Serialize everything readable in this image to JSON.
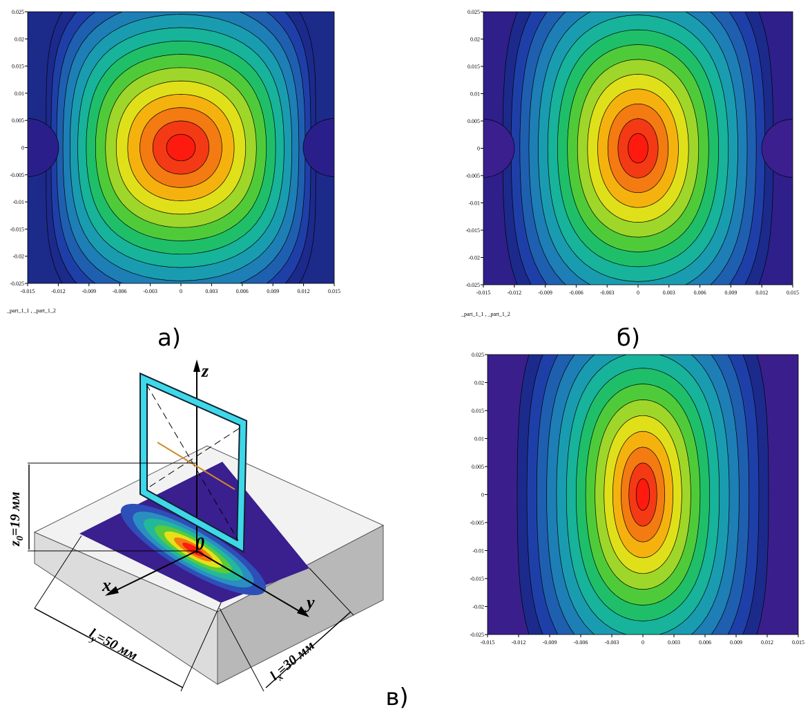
{
  "plots": [
    {
      "xticks": [
        -0.015,
        -0.012,
        -0.009,
        -0.006,
        -0.003,
        0,
        0.003,
        0.006,
        0.009,
        0.012,
        0.015
      ],
      "yticks": [
        0.025,
        0.02,
        0.015,
        0.01,
        0.005,
        0,
        -0.005,
        -0.01,
        -0.015,
        -0.02,
        -0.025
      ],
      "legend": "_part_1_1 , _part_1_2",
      "caption": "а)"
    },
    {
      "xticks": [
        -0.015,
        -0.012,
        -0.009,
        -0.006,
        -0.003,
        0,
        0.003,
        0.006,
        0.009,
        0.012,
        0.015
      ],
      "yticks": [
        0.025,
        0.02,
        0.015,
        0.01,
        0.005,
        0,
        -0.005,
        -0.01,
        -0.015,
        -0.02,
        -0.025
      ],
      "legend": "_part_1_1 , _part_1_2",
      "caption": "б)"
    },
    {
      "xticks": [
        -0.015,
        -0.012,
        -0.009,
        -0.006,
        -0.003,
        0,
        0.003,
        0.006,
        0.009,
        0.012,
        0.015
      ],
      "yticks": [
        0.025,
        0.02,
        0.015,
        0.01,
        0.005,
        0,
        -0.005,
        -0.01,
        -0.015,
        -0.02,
        -0.025
      ]
    }
  ],
  "diagram": {
    "axes": {
      "z": "z",
      "x": "x",
      "y": "y",
      "origin": "0"
    },
    "z0": {
      "symbol": "z",
      "subscript": "0",
      "text": "=19 мм"
    },
    "ly": {
      "symbol": "l",
      "subscript": "y",
      "text": "=50 мм"
    },
    "lx": {
      "symbol": "l",
      "subscript": "x",
      "text": "=30 мм"
    },
    "caption": "в)"
  }
}
